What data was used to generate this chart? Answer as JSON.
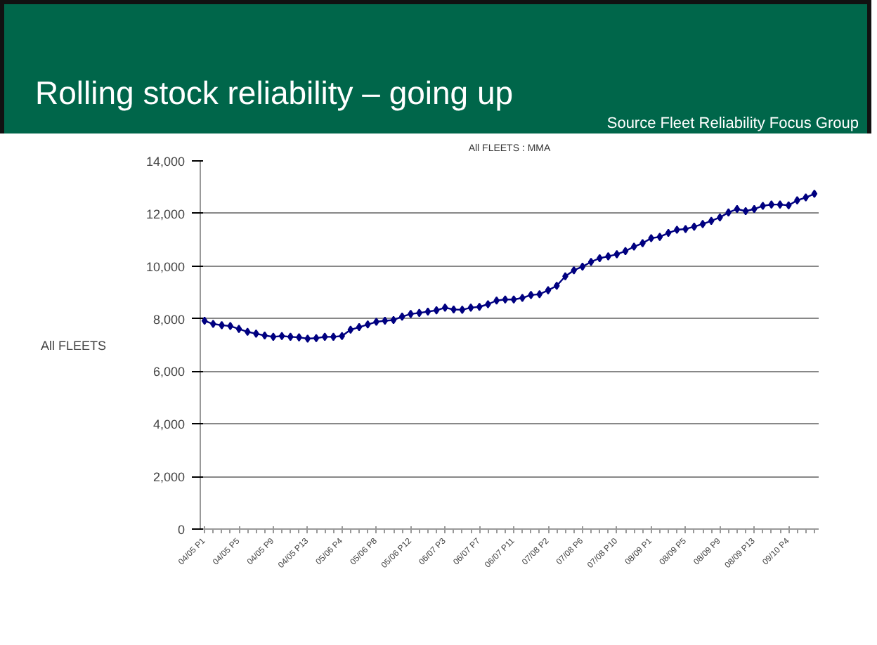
{
  "chart_data": {
    "type": "line",
    "title": "Rolling stock reliability – going up",
    "subtitle": "All FLEETS : MMA",
    "annotations": [
      "Source Fleet Reliability Focus Group"
    ],
    "categories": [
      "04/05 P1",
      null,
      null,
      null,
      "04/05 P5",
      null,
      null,
      null,
      "04/05 P9",
      null,
      null,
      null,
      "04/05 P13",
      null,
      null,
      null,
      "05/06 P4",
      null,
      null,
      null,
      "05/06 P8",
      null,
      null,
      null,
      "05/06 P12",
      null,
      null,
      null,
      "06/07 P3",
      null,
      null,
      null,
      "06/07 P7",
      null,
      null,
      null,
      "06/07 P11",
      null,
      null,
      null,
      "07/08 P2",
      null,
      null,
      null,
      "07/08 P6",
      null,
      null,
      null,
      "07/08 P10",
      null,
      null,
      null,
      "08/09 P1",
      null,
      null,
      null,
      "08/09 P5",
      null,
      null,
      null,
      "08/09 P9",
      null,
      null,
      null,
      "08/09 P13",
      null,
      null,
      null,
      "09/10 P4",
      null,
      null,
      null
    ],
    "series": [
      {
        "name": "All FLEETS",
        "color": "#000080",
        "values": [
          7920,
          7800,
          7750,
          7720,
          7610,
          7500,
          7430,
          7360,
          7310,
          7340,
          7310,
          7290,
          7240,
          7260,
          7310,
          7310,
          7340,
          7580,
          7680,
          7780,
          7880,
          7920,
          7950,
          8080,
          8180,
          8220,
          8270,
          8320,
          8420,
          8350,
          8340,
          8420,
          8450,
          8550,
          8690,
          8730,
          8730,
          8790,
          8900,
          8930,
          9080,
          9250,
          9610,
          9840,
          9980,
          10160,
          10300,
          10370,
          10450,
          10570,
          10740,
          10870,
          11060,
          11110,
          11260,
          11380,
          11410,
          11500,
          11600,
          11720,
          11850,
          12040,
          12170,
          12090,
          12170,
          12290,
          12340,
          12340,
          12310,
          12500,
          12610,
          12750
        ]
      }
    ],
    "ylim": [
      0,
      14000
    ],
    "yticks": [
      {
        "value": 0,
        "label": "0"
      },
      {
        "value": 2000,
        "label": "2,000"
      },
      {
        "value": 4000,
        "label": "4,000"
      },
      {
        "value": 6000,
        "label": "6,000"
      },
      {
        "value": 8000,
        "label": "8,000"
      },
      {
        "value": 10000,
        "label": "10,000"
      },
      {
        "value": 12000,
        "label": "12,000"
      },
      {
        "value": 14000,
        "label": "14,000"
      }
    ],
    "grid": "y",
    "legend": "left",
    "marker": "diamond",
    "line_style": "solid"
  }
}
